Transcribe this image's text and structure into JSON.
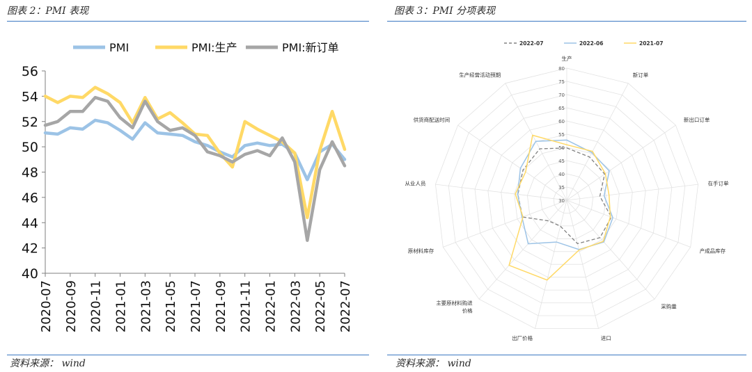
{
  "left": {
    "title": "图表 2：PMI 表现",
    "source": "资料来源： wind"
  },
  "right": {
    "title": "图表 3：PMI 分项表现",
    "source": "资料来源： wind"
  },
  "chart_data": [
    {
      "type": "line",
      "xlim": [
        "2020-07",
        "2022-07"
      ],
      "ylim": [
        40,
        56
      ],
      "yticks": [
        40,
        42,
        44,
        46,
        48,
        50,
        52,
        54,
        56
      ],
      "x": [
        "2020-07",
        "2020-08",
        "2020-09",
        "2020-10",
        "2020-11",
        "2020-12",
        "2021-01",
        "2021-02",
        "2021-03",
        "2021-04",
        "2021-05",
        "2021-06",
        "2021-07",
        "2021-08",
        "2021-09",
        "2021-10",
        "2021-11",
        "2021-12",
        "2022-01",
        "2022-02",
        "2022-03",
        "2022-04",
        "2022-05",
        "2022-06",
        "2022-07"
      ],
      "xticks": [
        "2020-07",
        "2020-09",
        "2020-11",
        "2021-01",
        "2021-03",
        "2021-05",
        "2021-07",
        "2021-09",
        "2021-11",
        "2022-01",
        "2022-03",
        "2022-05",
        "2022-07"
      ],
      "legend_position": "top",
      "series": [
        {
          "name": "PMI",
          "color": "#9cc3e6",
          "values": [
            51.1,
            51.0,
            51.5,
            51.4,
            52.1,
            51.9,
            51.3,
            50.6,
            51.9,
            51.1,
            51.0,
            50.9,
            50.4,
            50.1,
            49.6,
            49.2,
            50.1,
            50.3,
            50.1,
            50.2,
            49.5,
            47.4,
            49.6,
            50.2,
            49.0
          ]
        },
        {
          "name": "PMI:生产",
          "color": "#ffd966",
          "values": [
            54.0,
            53.5,
            54.0,
            53.9,
            54.7,
            54.2,
            53.5,
            51.9,
            53.9,
            52.2,
            52.7,
            51.9,
            51.0,
            50.9,
            49.5,
            48.4,
            52.0,
            51.4,
            50.9,
            50.4,
            49.5,
            44.4,
            49.7,
            52.8,
            49.8
          ]
        },
        {
          "name": "PMI:新订单",
          "color": "#a6a6a6",
          "values": [
            51.7,
            52.0,
            52.8,
            52.8,
            53.9,
            53.6,
            52.3,
            51.5,
            53.6,
            52.0,
            51.3,
            51.5,
            50.9,
            49.6,
            49.3,
            48.8,
            49.4,
            49.7,
            49.3,
            50.7,
            48.8,
            42.6,
            48.2,
            50.4,
            48.5
          ]
        }
      ]
    },
    {
      "type": "radar",
      "rlim": [
        30,
        80
      ],
      "rticks": [
        30,
        35,
        40,
        45,
        50,
        55,
        60,
        65,
        70,
        75,
        80
      ],
      "legend_position": "top",
      "axes": [
        "生产",
        "新订单",
        "新出口订单",
        "在手订单",
        "产成品库存",
        "采购量",
        "进口",
        "出厂价格",
        "主要原材料购进价格",
        "原材料库存",
        "从业人员",
        "供货商配送时间",
        "生产经营活动预期"
      ],
      "series": [
        {
          "name": "2022-07",
          "color": "#808080",
          "dashed": true,
          "values": [
            49.8,
            48.5,
            47.4,
            42.6,
            48.0,
            48.9,
            46.9,
            40.1,
            40.4,
            47.9,
            48.6,
            50.1,
            52.0
          ]
        },
        {
          "name": "2022-06",
          "color": "#9cc3e6",
          "dashed": false,
          "values": [
            52.8,
            50.4,
            49.5,
            44.2,
            48.6,
            51.1,
            49.2,
            46.3,
            52.0,
            48.1,
            48.7,
            51.3,
            55.2
          ]
        },
        {
          "name": "2021-07",
          "color": "#ffd966",
          "dashed": false,
          "values": [
            51.0,
            50.9,
            47.7,
            46.1,
            47.6,
            50.8,
            49.4,
            61.1,
            62.9,
            47.7,
            49.6,
            48.9,
            57.8
          ]
        }
      ]
    }
  ]
}
